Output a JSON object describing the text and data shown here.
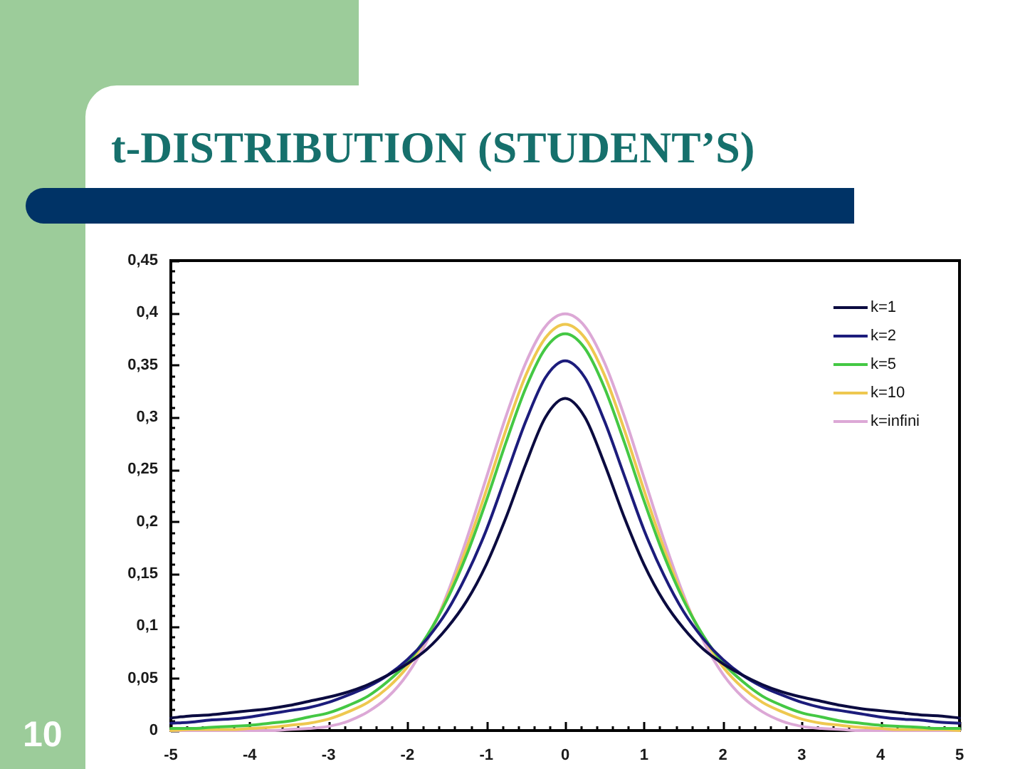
{
  "chart_data": {
    "type": "line",
    "title": "t-DISTRIBUTION (STUDENT’S)",
    "annotations": [
      "10"
    ],
    "x": [
      -5,
      -4.75,
      -4.5,
      -4.25,
      -4,
      -3.75,
      -3.5,
      -3.25,
      -3,
      -2.75,
      -2.5,
      -2.25,
      -2,
      -1.75,
      -1.5,
      -1.25,
      -1,
      -0.75,
      -0.5,
      -0.25,
      0,
      0.25,
      0.5,
      0.75,
      1,
      1.25,
      1.5,
      1.75,
      2,
      2.25,
      2.5,
      2.75,
      3,
      3.25,
      3.5,
      3.75,
      4,
      4.25,
      4.5,
      4.75,
      5
    ],
    "series": [
      {
        "name": "k=1",
        "color": "#0b0b40",
        "values": [
          0.012,
          0.014,
          0.015,
          0.017,
          0.019,
          0.021,
          0.024,
          0.028,
          0.032,
          0.037,
          0.044,
          0.053,
          0.064,
          0.078,
          0.098,
          0.124,
          0.159,
          0.204,
          0.255,
          0.3,
          0.318,
          0.3,
          0.255,
          0.204,
          0.159,
          0.124,
          0.098,
          0.078,
          0.064,
          0.053,
          0.044,
          0.037,
          0.032,
          0.028,
          0.024,
          0.021,
          0.019,
          0.017,
          0.015,
          0.014,
          0.012
        ]
      },
      {
        "name": "k=2",
        "color": "#1c1c7c",
        "values": [
          0.007,
          0.008,
          0.01,
          0.011,
          0.013,
          0.016,
          0.019,
          0.022,
          0.027,
          0.034,
          0.042,
          0.053,
          0.068,
          0.088,
          0.114,
          0.149,
          0.192,
          0.244,
          0.296,
          0.338,
          0.354,
          0.338,
          0.296,
          0.244,
          0.192,
          0.149,
          0.114,
          0.088,
          0.068,
          0.053,
          0.042,
          0.034,
          0.027,
          0.022,
          0.019,
          0.016,
          0.013,
          0.011,
          0.01,
          0.008,
          0.007
        ]
      },
      {
        "name": "k=5",
        "color": "#44c844",
        "values": [
          0.002,
          0.002,
          0.003,
          0.004,
          0.005,
          0.007,
          0.009,
          0.013,
          0.017,
          0.024,
          0.033,
          0.047,
          0.065,
          0.091,
          0.125,
          0.168,
          0.22,
          0.276,
          0.328,
          0.366,
          0.38,
          0.366,
          0.328,
          0.276,
          0.22,
          0.168,
          0.125,
          0.091,
          0.065,
          0.047,
          0.033,
          0.024,
          0.017,
          0.013,
          0.009,
          0.007,
          0.005,
          0.004,
          0.003,
          0.002,
          0.002
        ]
      },
      {
        "name": "k=10",
        "color": "#eec850",
        "values": [
          0,
          0.001,
          0.001,
          0.001,
          0.002,
          0.003,
          0.005,
          0.007,
          0.011,
          0.018,
          0.027,
          0.041,
          0.061,
          0.09,
          0.127,
          0.175,
          0.23,
          0.288,
          0.34,
          0.376,
          0.389,
          0.376,
          0.34,
          0.288,
          0.23,
          0.175,
          0.127,
          0.09,
          0.061,
          0.041,
          0.027,
          0.018,
          0.011,
          0.007,
          0.005,
          0.003,
          0.002,
          0.001,
          0.001,
          0.001,
          0
        ]
      },
      {
        "name": "k=infini",
        "color": "#dca8d6",
        "values": [
          0,
          0,
          0,
          0,
          0,
          0,
          0.001,
          0.002,
          0.004,
          0.009,
          0.018,
          0.032,
          0.054,
          0.086,
          0.13,
          0.183,
          0.242,
          0.301,
          0.352,
          0.387,
          0.399,
          0.387,
          0.352,
          0.301,
          0.242,
          0.183,
          0.13,
          0.086,
          0.054,
          0.032,
          0.018,
          0.009,
          0.004,
          0.002,
          0.001,
          0,
          0,
          0,
          0,
          0,
          0
        ]
      }
    ],
    "xlim": [
      -5,
      5
    ],
    "ylim": [
      0,
      0.45
    ],
    "xticks": [
      -5,
      {
        "value": -4.8,
        "label": null
      },
      {
        "value": -4.6,
        "label": null
      },
      {
        "value": -4.4,
        "label": null
      },
      {
        "value": -4.2,
        "label": null
      },
      -4,
      {
        "value": -3.8,
        "label": null
      },
      {
        "value": -3.6,
        "label": null
      },
      {
        "value": -3.4,
        "label": null
      },
      {
        "value": -3.2,
        "label": null
      },
      -3,
      {
        "value": -2.8,
        "label": null
      },
      {
        "value": -2.6,
        "label": null
      },
      {
        "value": -2.4,
        "label": null
      },
      {
        "value": -2.2,
        "label": null
      },
      -2,
      {
        "value": -1.8,
        "label": null
      },
      {
        "value": -1.6,
        "label": null
      },
      {
        "value": -1.4,
        "label": null
      },
      {
        "value": -1.2,
        "label": null
      },
      -1,
      {
        "value": -0.8,
        "label": null
      },
      {
        "value": -0.6,
        "label": null
      },
      {
        "value": -0.4,
        "label": null
      },
      {
        "value": -0.2,
        "label": null
      },
      0,
      {
        "value": 0.2,
        "label": null
      },
      {
        "value": 0.4,
        "label": null
      },
      {
        "value": 0.6,
        "label": null
      },
      {
        "value": 0.8,
        "label": null
      },
      1,
      {
        "value": 1.2,
        "label": null
      },
      {
        "value": 1.4,
        "label": null
      },
      {
        "value": 1.6,
        "label": null
      },
      {
        "value": 1.8,
        "label": null
      },
      2,
      {
        "value": 2.2,
        "label": null
      },
      {
        "value": 2.4,
        "label": null
      },
      {
        "value": 2.6,
        "label": null
      },
      {
        "value": 2.8,
        "label": null
      },
      3,
      {
        "value": 3.2,
        "label": null
      },
      {
        "value": 3.4,
        "label": null
      },
      {
        "value": 3.6,
        "label": null
      },
      {
        "value": 3.8,
        "label": null
      },
      4,
      {
        "value": 4.2,
        "label": null
      },
      {
        "value": 4.4,
        "label": null
      },
      {
        "value": 4.6,
        "label": null
      },
      {
        "value": 4.8,
        "label": null
      },
      5
    ],
    "yticks": [
      0,
      {
        "value": 0.01,
        "label": null
      },
      {
        "value": 0.02,
        "label": null
      },
      {
        "value": 0.03,
        "label": null
      },
      {
        "value": 0.04,
        "label": null
      },
      {
        "value": 0.05,
        "label": "0,05"
      },
      {
        "value": 0.06,
        "label": null
      },
      {
        "value": 0.07,
        "label": null
      },
      {
        "value": 0.08,
        "label": null
      },
      {
        "value": 0.09,
        "label": null
      },
      {
        "value": 0.1,
        "label": "0,1"
      },
      {
        "value": 0.11,
        "label": null
      },
      {
        "value": 0.12,
        "label": null
      },
      {
        "value": 0.13,
        "label": null
      },
      {
        "value": 0.14,
        "label": null
      },
      {
        "value": 0.15,
        "label": "0,15"
      },
      {
        "value": 0.16,
        "label": null
      },
      {
        "value": 0.17,
        "label": null
      },
      {
        "value": 0.18,
        "label": null
      },
      {
        "value": 0.19,
        "label": null
      },
      {
        "value": 0.2,
        "label": "0,2"
      },
      {
        "value": 0.21,
        "label": null
      },
      {
        "value": 0.22,
        "label": null
      },
      {
        "value": 0.23,
        "label": null
      },
      {
        "value": 0.24,
        "label": null
      },
      {
        "value": 0.25,
        "label": "0,25"
      },
      {
        "value": 0.26,
        "label": null
      },
      {
        "value": 0.27,
        "label": null
      },
      {
        "value": 0.28,
        "label": null
      },
      {
        "value": 0.29,
        "label": null
      },
      {
        "value": 0.3,
        "label": "0,3"
      },
      {
        "value": 0.31,
        "label": null
      },
      {
        "value": 0.32,
        "label": null
      },
      {
        "value": 0.33,
        "label": null
      },
      {
        "value": 0.34,
        "label": null
      },
      {
        "value": 0.35,
        "label": "0,35"
      },
      {
        "value": 0.36,
        "label": null
      },
      {
        "value": 0.37,
        "label": null
      },
      {
        "value": 0.38,
        "label": null
      },
      {
        "value": 0.39,
        "label": null
      },
      {
        "value": 0.4,
        "label": "0,4"
      },
      {
        "value": 0.41,
        "label": null
      },
      {
        "value": 0.42,
        "label": null
      },
      {
        "value": 0.43,
        "label": null
      },
      {
        "value": 0.44,
        "label": null
      },
      {
        "value": 0.45,
        "label": "0,45"
      }
    ],
    "legend": "top right",
    "marker": "none",
    "line_style": "solid"
  }
}
